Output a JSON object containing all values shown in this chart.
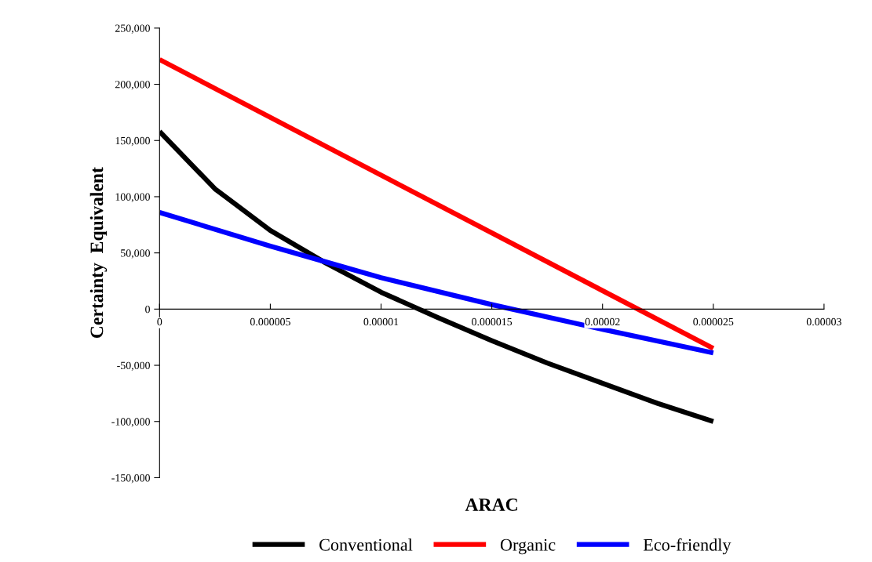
{
  "chart_data": {
    "type": "line",
    "xlabel": "ARAC",
    "ylabel": "Certainty  Equivalent",
    "series": [
      {
        "name": "Conventional",
        "color": "#000000",
        "x": [
          0,
          2.5e-06,
          5e-06,
          7.5e-06,
          1e-05,
          1.25e-05,
          1.5e-05,
          1.75e-05,
          2e-05,
          2.25e-05,
          2.5e-05
        ],
        "values": [
          158000,
          107000,
          70000,
          41000,
          15000,
          -7000,
          -28000,
          -48000,
          -66000,
          -84000,
          -100000
        ]
      },
      {
        "name": "Organic",
        "color": "#ff0000",
        "x": [
          0,
          2.5e-05
        ],
        "values": [
          222000,
          -35000
        ]
      },
      {
        "name": "Eco-friendly",
        "color": "#0000ff",
        "x": [
          0,
          5e-06,
          7.5e-06,
          1e-05,
          1.5e-05,
          2e-05,
          2.5e-05
        ],
        "values": [
          86000,
          56000,
          42000,
          28000,
          4000,
          -18000,
          -39000
        ]
      }
    ],
    "xlim": [
      0,
      3e-05
    ],
    "xticks": [
      0,
      {
        "value": 5e-06,
        "label": "0.000005"
      },
      {
        "value": 1e-05,
        "label": "0.00001"
      },
      {
        "value": 1.5e-05,
        "label": "0.000015"
      },
      {
        "value": 2e-05,
        "label": "0.00002"
      },
      {
        "value": 2.5e-05,
        "label": "0.000025"
      },
      {
        "value": 3e-05,
        "label": "0.00003"
      }
    ],
    "ylim": [
      -150000,
      250000
    ],
    "yticks": [
      {
        "value": -150000,
        "label": "-150,000"
      },
      {
        "value": -100000,
        "label": "-100,000"
      },
      {
        "value": -50000,
        "label": "-50,000"
      },
      0,
      {
        "value": 50000,
        "label": "50,000"
      },
      {
        "value": 100000,
        "label": "100,000"
      },
      {
        "value": 150000,
        "label": "150,000"
      },
      {
        "value": 200000,
        "label": "200,000"
      },
      {
        "value": 250000,
        "label": "250,000"
      }
    ],
    "grid": false,
    "legend": "bottom",
    "marker": "none",
    "line_style": "solid"
  }
}
